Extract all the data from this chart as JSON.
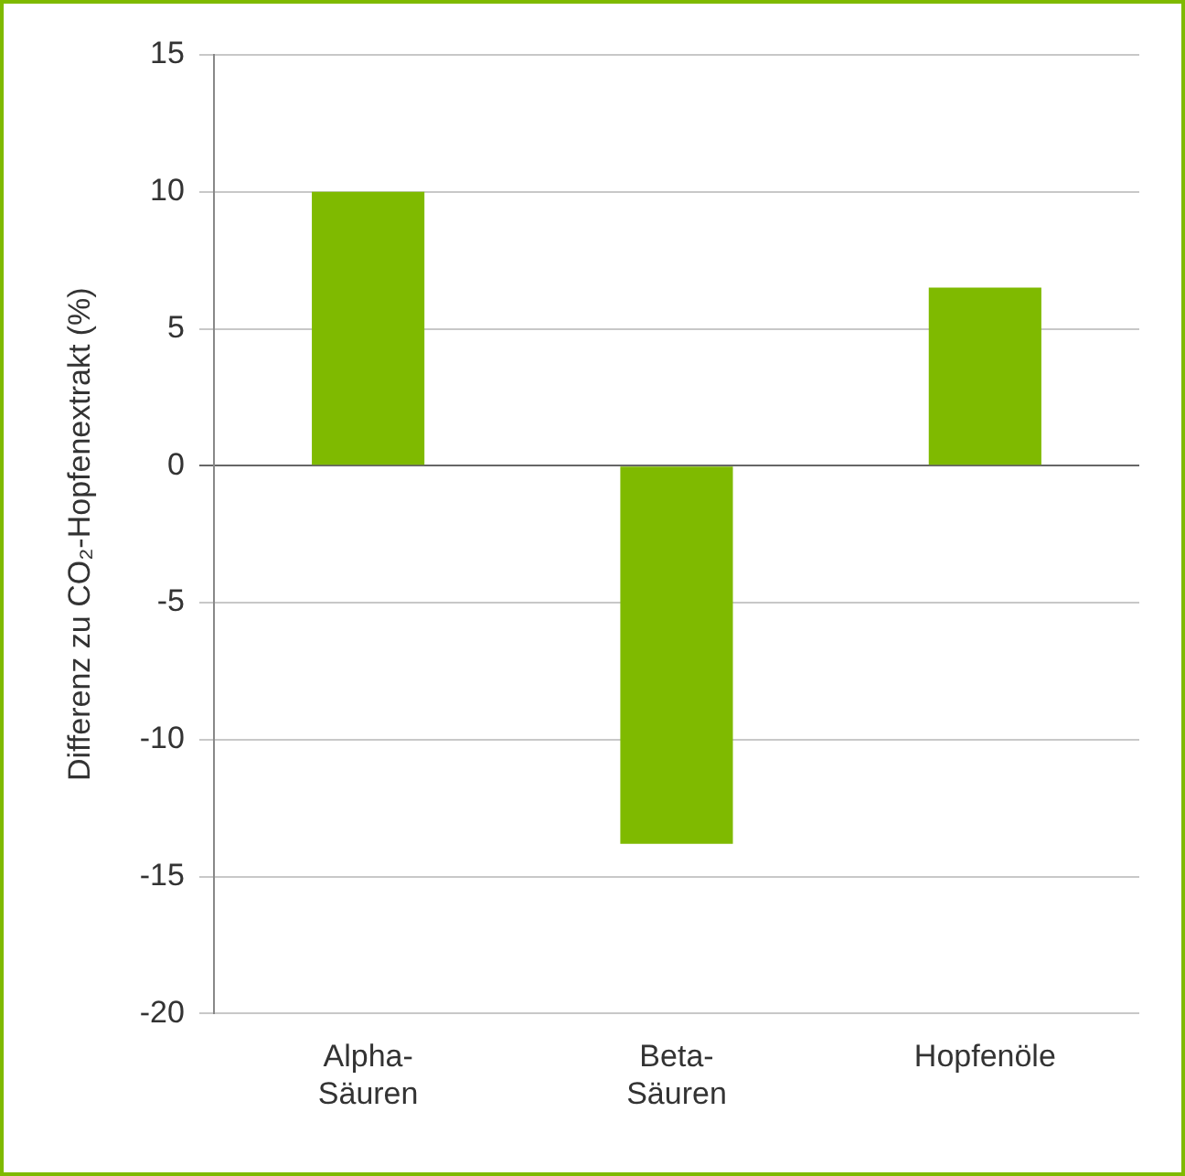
{
  "chart_data": {
    "type": "bar",
    "ylabel": "Differenz zu CO₂-Hopfenextrakt (%)",
    "categories": [
      "Alpha-Säuren",
      "Beta-Säuren",
      "Hopfenöle"
    ],
    "values": [
      10,
      -13.8,
      6.5
    ],
    "color": "#7fba00",
    "ylim": [
      -20,
      15
    ],
    "yticks": [
      -20,
      -15,
      -10,
      -5,
      0,
      5,
      10,
      15
    ],
    "grid": "y",
    "legend": false
  }
}
